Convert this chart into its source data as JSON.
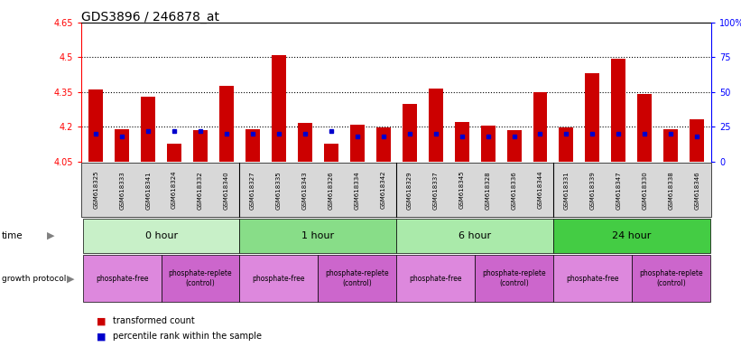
{
  "title": "GDS3896 / 246878_at",
  "samples": [
    "GSM618325",
    "GSM618333",
    "GSM618341",
    "GSM618324",
    "GSM618332",
    "GSM618340",
    "GSM618327",
    "GSM618335",
    "GSM618343",
    "GSM618326",
    "GSM618334",
    "GSM618342",
    "GSM618329",
    "GSM618337",
    "GSM618345",
    "GSM618328",
    "GSM618336",
    "GSM618344",
    "GSM618331",
    "GSM618339",
    "GSM618347",
    "GSM618330",
    "GSM618338",
    "GSM618346"
  ],
  "transformed_counts": [
    4.36,
    4.19,
    4.33,
    4.125,
    4.185,
    4.375,
    4.19,
    4.51,
    4.215,
    4.125,
    4.21,
    4.195,
    4.3,
    4.365,
    4.22,
    4.205,
    4.185,
    4.35,
    4.195,
    4.43,
    4.495,
    4.34,
    4.19,
    4.23
  ],
  "percentile_ranks": [
    20,
    18,
    22,
    22,
    22,
    20,
    20,
    20,
    20,
    22,
    18,
    18,
    20,
    20,
    18,
    18,
    18,
    20,
    20,
    20,
    20,
    20,
    20,
    18
  ],
  "ylim_left": [
    4.05,
    4.65
  ],
  "yticks_left": [
    4.05,
    4.2,
    4.35,
    4.5,
    4.65
  ],
  "ytick_labels_left": [
    "4.05",
    "4.2",
    "4.35",
    "4.5",
    "4.65"
  ],
  "ylim_right": [
    0,
    100
  ],
  "yticks_right": [
    0,
    25,
    50,
    75,
    100
  ],
  "ytick_labels_right": [
    "0",
    "25",
    "50",
    "75",
    "100%"
  ],
  "bar_color": "#cc0000",
  "percentile_color": "#0000cc",
  "base_value": 4.05,
  "dotted_lines": [
    4.2,
    4.35,
    4.5
  ],
  "time_groups": [
    {
      "label": "0 hour",
      "start": 0,
      "end": 6,
      "color": "#c8f0c8"
    },
    {
      "label": "1 hour",
      "start": 6,
      "end": 12,
      "color": "#88dd88"
    },
    {
      "label": "6 hour",
      "start": 12,
      "end": 18,
      "color": "#aaeaaa"
    },
    {
      "label": "24 hour",
      "start": 18,
      "end": 24,
      "color": "#44cc44"
    }
  ],
  "protocol_groups": [
    {
      "label": "phosphate-free",
      "start": 0,
      "end": 3,
      "color": "#dd88dd"
    },
    {
      "label": "phosphate-replete\n(control)",
      "start": 3,
      "end": 6,
      "color": "#cc66cc"
    },
    {
      "label": "phosphate-free",
      "start": 6,
      "end": 9,
      "color": "#dd88dd"
    },
    {
      "label": "phosphate-replete\n(control)",
      "start": 9,
      "end": 12,
      "color": "#cc66cc"
    },
    {
      "label": "phosphate-free",
      "start": 12,
      "end": 15,
      "color": "#dd88dd"
    },
    {
      "label": "phosphate-replete\n(control)",
      "start": 15,
      "end": 18,
      "color": "#cc66cc"
    },
    {
      "label": "phosphate-free",
      "start": 18,
      "end": 21,
      "color": "#dd88dd"
    },
    {
      "label": "phosphate-replete\n(control)",
      "start": 21,
      "end": 24,
      "color": "#cc66cc"
    }
  ],
  "background_color": "#ffffff",
  "xtick_bg": "#d8d8d8"
}
